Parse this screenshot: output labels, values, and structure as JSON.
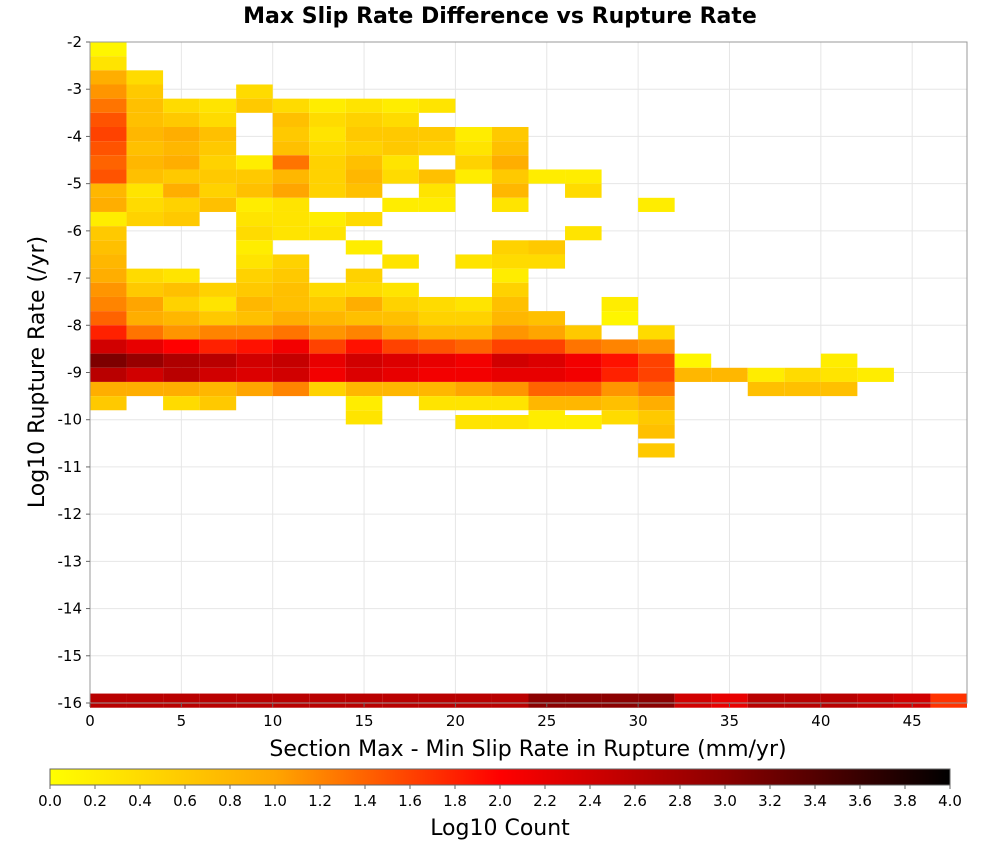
{
  "chart_data": {
    "type": "heatmap",
    "title": "Max Slip Rate Difference vs Rupture Rate",
    "xlabel": "Section Max - Min Slip Rate in Rupture (mm/yr)",
    "ylabel": "Log10 Rupture Rate (/yr)",
    "colorbar_label": "Log10 Count",
    "xlim": [
      0,
      48
    ],
    "ylim": [
      -16,
      -2
    ],
    "x_ticks": [
      "0",
      "5",
      "10",
      "15",
      "20",
      "25",
      "30",
      "35",
      "40",
      "45"
    ],
    "x_tick_values": [
      0,
      5,
      10,
      15,
      20,
      25,
      30,
      35,
      40,
      45
    ],
    "y_ticks": [
      "-2",
      "-3",
      "-4",
      "-5",
      "-6",
      "-7",
      "-8",
      "-9",
      "-10",
      "-11",
      "-12",
      "-13",
      "-14",
      "-15",
      "-16"
    ],
    "y_tick_values": [
      -2,
      -3,
      -4,
      -5,
      -6,
      -7,
      -8,
      -9,
      -10,
      -11,
      -12,
      -13,
      -14,
      -15,
      -16
    ],
    "colorbar_ticks": [
      "0.0",
      "0.2",
      "0.4",
      "0.6",
      "0.8",
      "1.0",
      "1.2",
      "1.4",
      "1.6",
      "1.8",
      "2.0",
      "2.2",
      "2.4",
      "2.6",
      "2.8",
      "3.0",
      "3.2",
      "3.4",
      "3.6",
      "3.8",
      "4.0"
    ],
    "colorbar_range": [
      0,
      4
    ],
    "colormap": [
      "#ffff00",
      "#ffa500",
      "#ff0000",
      "#8b0000",
      "#000000"
    ],
    "x_bin_width": 2,
    "y_bin_height": 0.3,
    "bins_note_y": "y values are bin centers",
    "bins": [
      [
        1,
        -2.15,
        0.1
      ],
      [
        1,
        -2.45,
        0.3
      ],
      [
        1,
        -2.75,
        0.9
      ],
      [
        1,
        -3.05,
        1.1
      ],
      [
        1,
        -3.35,
        1.3
      ],
      [
        1,
        -3.65,
        1.5
      ],
      [
        1,
        -3.95,
        1.6
      ],
      [
        1,
        -4.25,
        1.5
      ],
      [
        1,
        -4.55,
        1.4
      ],
      [
        1,
        -4.85,
        1.5
      ],
      [
        1,
        -5.15,
        0.8
      ],
      [
        1,
        -5.45,
        0.9
      ],
      [
        1,
        -5.75,
        0.2
      ],
      [
        1,
        -6.05,
        0.6
      ],
      [
        1,
        -6.35,
        0.7
      ],
      [
        1,
        -6.65,
        0.8
      ],
      [
        1,
        -6.95,
        0.9
      ],
      [
        1,
        -7.25,
        1.1
      ],
      [
        1,
        -7.55,
        1.2
      ],
      [
        1,
        -7.85,
        1.4
      ],
      [
        1,
        -8.15,
        1.8
      ],
      [
        1,
        -8.45,
        2.4
      ],
      [
        1,
        -8.75,
        3.1
      ],
      [
        1,
        -9.05,
        2.6
      ],
      [
        1,
        -9.35,
        0.9
      ],
      [
        1,
        -9.65,
        0.6
      ],
      [
        1,
        -15.95,
        2.6
      ],
      [
        3,
        -2.75,
        0.4
      ],
      [
        3,
        -3.05,
        0.6
      ],
      [
        3,
        -3.35,
        0.7
      ],
      [
        3,
        -3.65,
        0.7
      ],
      [
        3,
        -3.95,
        0.8
      ],
      [
        3,
        -4.25,
        0.7
      ],
      [
        3,
        -4.55,
        0.8
      ],
      [
        3,
        -4.85,
        0.7
      ],
      [
        3,
        -5.15,
        0.3
      ],
      [
        3,
        -5.45,
        0.4
      ],
      [
        3,
        -5.75,
        0.5
      ],
      [
        3,
        -6.95,
        0.4
      ],
      [
        3,
        -7.25,
        0.6
      ],
      [
        3,
        -7.55,
        1.0
      ],
      [
        3,
        -7.85,
        0.9
      ],
      [
        3,
        -8.15,
        1.3
      ],
      [
        3,
        -8.45,
        2.2
      ],
      [
        3,
        -8.75,
        2.9
      ],
      [
        3,
        -9.05,
        2.4
      ],
      [
        3,
        -9.35,
        0.9
      ],
      [
        3,
        -15.95,
        2.6
      ],
      [
        5,
        -3.35,
        0.4
      ],
      [
        5,
        -3.65,
        0.6
      ],
      [
        5,
        -3.95,
        0.9
      ],
      [
        5,
        -4.25,
        0.8
      ],
      [
        5,
        -4.55,
        0.9
      ],
      [
        5,
        -4.85,
        0.6
      ],
      [
        5,
        -5.15,
        0.9
      ],
      [
        5,
        -5.45,
        0.5
      ],
      [
        5,
        -5.75,
        0.6
      ],
      [
        5,
        -6.95,
        0.3
      ],
      [
        5,
        -7.25,
        0.7
      ],
      [
        5,
        -7.55,
        0.5
      ],
      [
        5,
        -7.85,
        0.8
      ],
      [
        5,
        -8.15,
        1.1
      ],
      [
        5,
        -8.45,
        2.0
      ],
      [
        5,
        -8.75,
        2.7
      ],
      [
        5,
        -9.05,
        2.6
      ],
      [
        5,
        -9.35,
        0.9
      ],
      [
        5,
        -9.65,
        0.4
      ],
      [
        5,
        -15.95,
        2.6
      ],
      [
        7,
        -3.35,
        0.3
      ],
      [
        7,
        -3.65,
        0.4
      ],
      [
        7,
        -3.95,
        0.7
      ],
      [
        7,
        -4.25,
        0.6
      ],
      [
        7,
        -4.55,
        0.5
      ],
      [
        7,
        -4.85,
        0.6
      ],
      [
        7,
        -5.15,
        0.5
      ],
      [
        7,
        -5.45,
        0.7
      ],
      [
        7,
        -7.25,
        0.5
      ],
      [
        7,
        -7.55,
        0.3
      ],
      [
        7,
        -7.85,
        0.6
      ],
      [
        7,
        -8.15,
        1.2
      ],
      [
        7,
        -8.45,
        1.8
      ],
      [
        7,
        -8.75,
        2.6
      ],
      [
        7,
        -9.05,
        2.4
      ],
      [
        7,
        -9.35,
        0.8
      ],
      [
        7,
        -9.65,
        0.6
      ],
      [
        7,
        -15.95,
        2.6
      ],
      [
        9,
        -3.05,
        0.4
      ],
      [
        9,
        -3.35,
        0.6
      ],
      [
        9,
        -4.55,
        0.2
      ],
      [
        9,
        -4.85,
        0.6
      ],
      [
        9,
        -5.15,
        0.7
      ],
      [
        9,
        -5.45,
        0.2
      ],
      [
        9,
        -5.75,
        0.3
      ],
      [
        9,
        -6.05,
        0.4
      ],
      [
        9,
        -6.35,
        0.2
      ],
      [
        9,
        -6.65,
        0.3
      ],
      [
        9,
        -6.95,
        0.5
      ],
      [
        9,
        -7.25,
        0.6
      ],
      [
        9,
        -7.55,
        0.8
      ],
      [
        9,
        -7.85,
        0.7
      ],
      [
        9,
        -8.15,
        1.2
      ],
      [
        9,
        -8.45,
        1.9
      ],
      [
        9,
        -8.75,
        2.4
      ],
      [
        9,
        -9.05,
        2.3
      ],
      [
        9,
        -9.35,
        1.0
      ],
      [
        9,
        -15.95,
        2.6
      ],
      [
        11,
        -3.35,
        0.4
      ],
      [
        11,
        -3.65,
        0.7
      ],
      [
        11,
        -3.95,
        0.6
      ],
      [
        11,
        -4.25,
        0.7
      ],
      [
        11,
        -4.55,
        1.3
      ],
      [
        11,
        -4.85,
        0.8
      ],
      [
        11,
        -5.15,
        1.0
      ],
      [
        11,
        -5.45,
        0.3
      ],
      [
        11,
        -5.75,
        0.3
      ],
      [
        11,
        -6.05,
        0.3
      ],
      [
        11,
        -6.65,
        0.5
      ],
      [
        11,
        -6.95,
        0.6
      ],
      [
        11,
        -7.25,
        0.7
      ],
      [
        11,
        -7.55,
        0.7
      ],
      [
        11,
        -7.85,
        0.9
      ],
      [
        11,
        -8.15,
        1.3
      ],
      [
        11,
        -8.45,
        2.1
      ],
      [
        11,
        -8.75,
        2.5
      ],
      [
        11,
        -9.05,
        2.4
      ],
      [
        11,
        -9.35,
        1.2
      ],
      [
        11,
        -15.95,
        2.6
      ],
      [
        13,
        -3.35,
        0.2
      ],
      [
        13,
        -3.65,
        0.4
      ],
      [
        13,
        -3.95,
        0.3
      ],
      [
        13,
        -4.25,
        0.4
      ],
      [
        13,
        -4.55,
        0.5
      ],
      [
        13,
        -4.85,
        0.5
      ],
      [
        13,
        -5.15,
        0.5
      ],
      [
        13,
        -5.75,
        0.2
      ],
      [
        13,
        -6.05,
        0.3
      ],
      [
        13,
        -7.25,
        0.4
      ],
      [
        13,
        -7.55,
        0.6
      ],
      [
        13,
        -7.85,
        0.8
      ],
      [
        13,
        -8.15,
        1.1
      ],
      [
        13,
        -8.45,
        1.6
      ],
      [
        13,
        -8.75,
        2.2
      ],
      [
        13,
        -9.05,
        2.1
      ],
      [
        13,
        -9.35,
        0.5
      ],
      [
        13,
        -15.95,
        2.6
      ],
      [
        15,
        -3.35,
        0.3
      ],
      [
        15,
        -3.65,
        0.5
      ],
      [
        15,
        -3.95,
        0.6
      ],
      [
        15,
        -4.25,
        0.5
      ],
      [
        15,
        -4.55,
        0.7
      ],
      [
        15,
        -4.85,
        0.8
      ],
      [
        15,
        -5.15,
        0.7
      ],
      [
        15,
        -5.75,
        0.4
      ],
      [
        15,
        -6.35,
        0.2
      ],
      [
        15,
        -6.95,
        0.5
      ],
      [
        15,
        -7.25,
        0.4
      ],
      [
        15,
        -7.55,
        0.9
      ],
      [
        15,
        -7.85,
        0.7
      ],
      [
        15,
        -8.15,
        1.2
      ],
      [
        15,
        -8.45,
        1.9
      ],
      [
        15,
        -8.75,
        2.4
      ],
      [
        15,
        -9.05,
        2.3
      ],
      [
        15,
        -9.35,
        0.8
      ],
      [
        15,
        -9.65,
        0.2
      ],
      [
        15,
        -9.95,
        0.3
      ],
      [
        15,
        -15.95,
        2.6
      ],
      [
        17,
        -3.35,
        0.2
      ],
      [
        17,
        -3.65,
        0.4
      ],
      [
        17,
        -3.95,
        0.6
      ],
      [
        17,
        -4.25,
        0.6
      ],
      [
        17,
        -4.55,
        0.3
      ],
      [
        17,
        -4.85,
        0.4
      ],
      [
        17,
        -5.45,
        0.2
      ],
      [
        17,
        -6.65,
        0.3
      ],
      [
        17,
        -7.25,
        0.3
      ],
      [
        17,
        -7.55,
        0.5
      ],
      [
        17,
        -7.85,
        0.7
      ],
      [
        17,
        -8.15,
        1.0
      ],
      [
        17,
        -8.45,
        1.6
      ],
      [
        17,
        -8.75,
        2.3
      ],
      [
        17,
        -9.05,
        2.2
      ],
      [
        17,
        -9.35,
        0.8
      ],
      [
        17,
        -15.95,
        2.6
      ],
      [
        19,
        -3.35,
        0.3
      ],
      [
        19,
        -3.95,
        0.6
      ],
      [
        19,
        -4.25,
        0.5
      ],
      [
        19,
        -4.85,
        0.7
      ],
      [
        19,
        -5.15,
        0.3
      ],
      [
        19,
        -5.45,
        0.2
      ],
      [
        19,
        -7.55,
        0.4
      ],
      [
        19,
        -7.85,
        0.5
      ],
      [
        19,
        -8.15,
        0.8
      ],
      [
        19,
        -8.45,
        1.5
      ],
      [
        19,
        -8.75,
        2.2
      ],
      [
        19,
        -9.05,
        2.1
      ],
      [
        19,
        -9.35,
        0.8
      ],
      [
        19,
        -9.65,
        0.3
      ],
      [
        19,
        -15.95,
        2.6
      ],
      [
        21,
        -3.95,
        0.2
      ],
      [
        21,
        -4.25,
        0.3
      ],
      [
        21,
        -4.55,
        0.5
      ],
      [
        21,
        -4.85,
        0.2
      ],
      [
        21,
        -6.65,
        0.3
      ],
      [
        21,
        -7.55,
        0.3
      ],
      [
        21,
        -7.85,
        0.5
      ],
      [
        21,
        -8.15,
        0.8
      ],
      [
        21,
        -8.45,
        1.4
      ],
      [
        21,
        -8.75,
        2.1
      ],
      [
        21,
        -9.05,
        2.1
      ],
      [
        21,
        -9.35,
        1.0
      ],
      [
        21,
        -9.65,
        0.3
      ],
      [
        21,
        -10.05,
        0.3
      ],
      [
        21,
        -15.95,
        2.6
      ],
      [
        23,
        -3.95,
        0.6
      ],
      [
        23,
        -4.25,
        0.7
      ],
      [
        23,
        -4.55,
        0.9
      ],
      [
        23,
        -4.85,
        0.6
      ],
      [
        23,
        -5.15,
        0.8
      ],
      [
        23,
        -5.45,
        0.3
      ],
      [
        23,
        -6.35,
        0.5
      ],
      [
        23,
        -6.65,
        0.4
      ],
      [
        23,
        -6.95,
        0.2
      ],
      [
        23,
        -7.25,
        0.5
      ],
      [
        23,
        -7.55,
        0.7
      ],
      [
        23,
        -7.85,
        0.8
      ],
      [
        23,
        -8.15,
        1.1
      ],
      [
        23,
        -8.45,
        1.6
      ],
      [
        23,
        -8.75,
        2.4
      ],
      [
        23,
        -9.05,
        2.2
      ],
      [
        23,
        -9.35,
        1.1
      ],
      [
        23,
        -9.65,
        0.3
      ],
      [
        23,
        -10.05,
        0.3
      ],
      [
        23,
        -15.95,
        2.6
      ],
      [
        25,
        -4.85,
        0.2
      ],
      [
        25,
        -6.35,
        0.6
      ],
      [
        25,
        -6.65,
        0.4
      ],
      [
        25,
        -7.85,
        0.7
      ],
      [
        25,
        -8.15,
        1.0
      ],
      [
        25,
        -8.45,
        1.6
      ],
      [
        25,
        -8.75,
        2.3
      ],
      [
        25,
        -9.05,
        2.2
      ],
      [
        25,
        -9.35,
        1.4
      ],
      [
        25,
        -9.65,
        0.8
      ],
      [
        25,
        -9.95,
        0.2
      ],
      [
        25,
        -10.05,
        0.2
      ],
      [
        25,
        -15.95,
        3.0
      ],
      [
        27,
        -4.85,
        0.2
      ],
      [
        27,
        -5.15,
        0.4
      ],
      [
        27,
        -6.05,
        0.3
      ],
      [
        27,
        -8.15,
        0.6
      ],
      [
        27,
        -8.45,
        1.3
      ],
      [
        27,
        -8.75,
        2.1
      ],
      [
        27,
        -9.05,
        2.1
      ],
      [
        27,
        -9.35,
        1.4
      ],
      [
        27,
        -9.65,
        0.8
      ],
      [
        27,
        -10.05,
        0.2
      ],
      [
        27,
        -15.95,
        3.0
      ],
      [
        29,
        -7.55,
        0.2
      ],
      [
        29,
        -7.85,
        0.1
      ],
      [
        29,
        -8.45,
        1.2
      ],
      [
        29,
        -8.75,
        1.9
      ],
      [
        29,
        -9.05,
        1.8
      ],
      [
        29,
        -9.35,
        1.1
      ],
      [
        29,
        -9.65,
        0.7
      ],
      [
        29,
        -9.95,
        0.4
      ],
      [
        29,
        -15.95,
        3.0
      ],
      [
        31,
        -5.45,
        0.2
      ],
      [
        31,
        -8.15,
        0.4
      ],
      [
        31,
        -8.45,
        1.1
      ],
      [
        31,
        -8.75,
        1.6
      ],
      [
        31,
        -9.05,
        1.6
      ],
      [
        31,
        -9.35,
        1.3
      ],
      [
        31,
        -9.65,
        0.9
      ],
      [
        31,
        -9.95,
        0.6
      ],
      [
        31,
        -10.25,
        0.7
      ],
      [
        31,
        -10.65,
        0.6
      ],
      [
        31,
        -15.95,
        3.0
      ],
      [
        33,
        -8.75,
        0.1
      ],
      [
        33,
        -9.05,
        0.8
      ],
      [
        33,
        -15.95,
        2.4
      ],
      [
        35,
        -9.05,
        0.8
      ],
      [
        35,
        -15.95,
        2.2
      ],
      [
        37,
        -9.05,
        0.2
      ],
      [
        37,
        -9.35,
        0.7
      ],
      [
        37,
        -15.95,
        2.6
      ],
      [
        39,
        -9.05,
        0.4
      ],
      [
        39,
        -9.35,
        0.7
      ],
      [
        39,
        -15.95,
        2.6
      ],
      [
        41,
        -8.75,
        0.2
      ],
      [
        41,
        -9.05,
        0.3
      ],
      [
        41,
        -9.35,
        0.7
      ],
      [
        41,
        -15.95,
        2.6
      ],
      [
        43,
        -9.05,
        0.2
      ],
      [
        43,
        -15.95,
        2.5
      ],
      [
        45,
        -15.95,
        2.4
      ],
      [
        47,
        -15.95,
        1.7
      ]
    ]
  }
}
